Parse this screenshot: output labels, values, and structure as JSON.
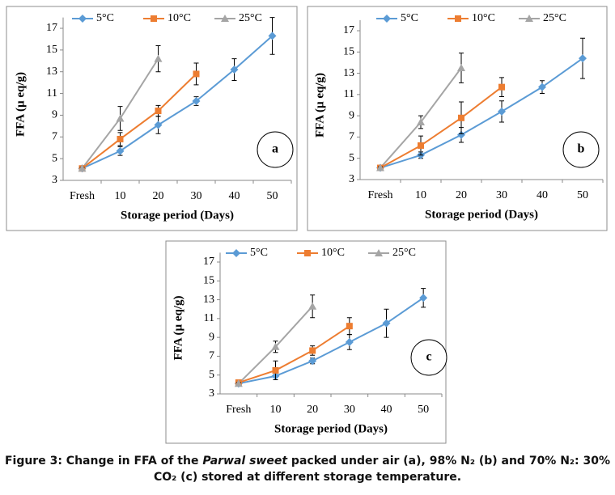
{
  "chart_data": [
    {
      "type": "line",
      "annotation": "a",
      "ylabel": "FFA (µ eq/g)",
      "xlabel": "Storage period (Days)",
      "categories": [
        "Fresh",
        "10",
        "20",
        "30",
        "40",
        "50"
      ],
      "ylim": [
        3,
        18
      ],
      "yticks": [
        3,
        5,
        7,
        9,
        11,
        13,
        15,
        17
      ],
      "legend": "top",
      "series": [
        {
          "name": "5°C",
          "color": "#5b9bd5",
          "marker": "diamond",
          "values": [
            4.1,
            5.7,
            8.1,
            10.3,
            13.2,
            16.3
          ],
          "errors": [
            0.1,
            0.4,
            0.8,
            0.4,
            1.0,
            1.7
          ]
        },
        {
          "name": "10°C",
          "color": "#ed7d31",
          "marker": "square",
          "values": [
            4.1,
            6.8,
            9.4,
            12.8,
            null,
            null
          ],
          "errors": [
            0.1,
            0.6,
            0.5,
            1.0,
            null,
            null
          ]
        },
        {
          "name": "25°C",
          "color": "#a5a5a5",
          "marker": "triangle",
          "values": [
            4.1,
            8.7,
            14.2,
            null,
            null,
            null
          ],
          "errors": [
            0.1,
            1.1,
            1.2,
            null,
            null,
            null
          ]
        }
      ]
    },
    {
      "type": "line",
      "annotation": "b",
      "ylabel": "FFA (µ eq/g)",
      "xlabel": "Storage period (Days)",
      "categories": [
        "Fresh",
        "10",
        "20",
        "30",
        "40",
        "50"
      ],
      "ylim": [
        3,
        18
      ],
      "yticks": [
        3,
        5,
        7,
        9,
        11,
        13,
        15,
        17
      ],
      "legend": "top",
      "series": [
        {
          "name": "5°C",
          "color": "#5b9bd5",
          "marker": "diamond",
          "values": [
            4.1,
            5.3,
            7.2,
            9.4,
            11.7,
            14.4
          ],
          "errors": [
            0.1,
            0.3,
            0.7,
            1.0,
            0.6,
            1.9
          ]
        },
        {
          "name": "10°C",
          "color": "#ed7d31",
          "marker": "square",
          "values": [
            4.1,
            6.2,
            8.8,
            11.7,
            null,
            null
          ],
          "errors": [
            0.1,
            0.9,
            1.5,
            0.9,
            null,
            null
          ]
        },
        {
          "name": "25°C",
          "color": "#a5a5a5",
          "marker": "triangle",
          "values": [
            4.1,
            8.4,
            13.5,
            null,
            null,
            null
          ],
          "errors": [
            0.1,
            0.6,
            1.4,
            null,
            null,
            null
          ]
        }
      ]
    },
    {
      "type": "line",
      "annotation": "c",
      "ylabel": "FFA (µ eq/g)",
      "xlabel": "Storage period (Days)",
      "categories": [
        "Fresh",
        "10",
        "20",
        "30",
        "40",
        "50"
      ],
      "ylim": [
        3,
        18
      ],
      "yticks": [
        3,
        5,
        7,
        9,
        11,
        13,
        15,
        17
      ],
      "legend": "top",
      "series": [
        {
          "name": "5°C",
          "color": "#5b9bd5",
          "marker": "diamond",
          "values": [
            4.1,
            4.9,
            6.5,
            8.5,
            10.5,
            13.2
          ],
          "errors": [
            0.1,
            0.4,
            0.3,
            0.8,
            1.5,
            1.0
          ]
        },
        {
          "name": "10°C",
          "color": "#ed7d31",
          "marker": "square",
          "values": [
            4.2,
            5.5,
            7.6,
            10.2,
            null,
            null
          ],
          "errors": [
            0.1,
            1.0,
            0.5,
            0.9,
            null,
            null
          ]
        },
        {
          "name": "25°C",
          "color": "#a5a5a5",
          "marker": "triangle",
          "values": [
            4.1,
            8.0,
            12.3,
            null,
            null,
            null
          ],
          "errors": [
            0.1,
            0.6,
            1.2,
            null,
            null,
            null
          ]
        }
      ]
    }
  ],
  "caption": [
    "Figure 3: Change in FFA of the ",
    "Parwal sweet",
    " packed under air (a), 98% N₂ (b) and 70% N₂: 30% CO₂ (c) stored at different storage temperature."
  ]
}
